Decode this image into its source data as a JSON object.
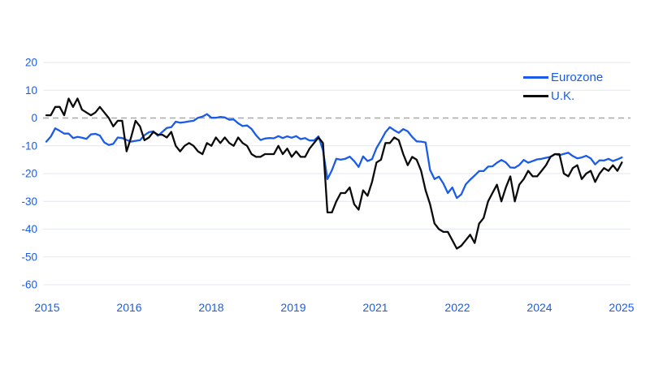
{
  "chart_data": {
    "type": "line",
    "x_unit": "monthly",
    "x_start": "2015-01",
    "x_end": "2025-10",
    "x_tick_labels": [
      "2015",
      "2016",
      "2018",
      "2019",
      "2021",
      "2022",
      "2024",
      "2025"
    ],
    "y_ticks": [
      20,
      10,
      0,
      -10,
      -20,
      -30,
      -40,
      -50,
      -60
    ],
    "ylim": [
      -60,
      20
    ],
    "grid": "horizontal-light",
    "zero_line": "dashed",
    "legend_position": "top-right",
    "series": [
      {
        "name": "Eurozone",
        "color": "#1a5ce8",
        "values": [
          -8.5,
          -6.7,
          -3.7,
          -4.6,
          -5.6,
          -5.6,
          -7.2,
          -6.8,
          -7.1,
          -7.5,
          -5.9,
          -5.7,
          -6.3,
          -8.8,
          -9.7,
          -9.3,
          -7,
          -7.2,
          -7.9,
          -8.5,
          -8.2,
          -8,
          -6.2,
          -5.1,
          -4.8,
          -6.4,
          -5,
          -3.6,
          -3.3,
          -1.3,
          -1.7,
          -1.5,
          -1.2,
          -1,
          0.1,
          0.5,
          1.4,
          0.1,
          0.1,
          0.4,
          0.2,
          -0.6,
          -0.5,
          -1.9,
          -2.9,
          -2.7,
          -3.9,
          -6.2,
          -7.9,
          -7.4,
          -7.2,
          -7.3,
          -6.5,
          -7.2,
          -6.6,
          -7.1,
          -6.5,
          -7.6,
          -7.2,
          -8.1,
          -8.1,
          -6.6,
          -11.6,
          -22,
          -18.8,
          -14.7,
          -15,
          -14.7,
          -13.9,
          -15.5,
          -17.6,
          -13.8,
          -15.5,
          -14.8,
          -10.8,
          -8.1,
          -5.1,
          -3.3,
          -4.4,
          -5.3,
          -4,
          -4.8,
          -6.8,
          -8.4,
          -8.5,
          -8.8,
          -18.7,
          -22,
          -21.1,
          -23.6,
          -27,
          -25,
          -28.8,
          -27.5,
          -23.9,
          -22.2,
          -20.7,
          -19.1,
          -19.1,
          -17.5,
          -17.4,
          -16.1,
          -15.1,
          -16,
          -17.8,
          -17.9,
          -16.9,
          -15.1,
          -16.1,
          -15.5,
          -14.9,
          -14.7,
          -14.3,
          -14,
          -13,
          -13.4,
          -12.9,
          -12.5,
          -13.7,
          -14.5,
          -14.2,
          -13.6,
          -14.5,
          -16.7,
          -15.2,
          -15.3,
          -14.7,
          -15.5,
          -14.9,
          -14.2
        ]
      },
      {
        "name": "U.K.",
        "color": "#0b0b0b",
        "values": [
          1,
          1,
          4,
          4,
          1,
          7,
          4,
          7,
          3,
          2,
          1,
          2,
          4,
          2,
          0,
          -3,
          -1,
          -1,
          -12,
          -7,
          -1,
          -3,
          -8,
          -7,
          -5,
          -6,
          -6,
          -7,
          -5,
          -10,
          -12,
          -10,
          -9,
          -10,
          -12,
          -13,
          -9,
          -10,
          -7,
          -9,
          -7,
          -9,
          -10,
          -7,
          -9,
          -10,
          -13,
          -14,
          -14,
          -13,
          -13,
          -13,
          -10,
          -13,
          -11,
          -14,
          -12,
          -14,
          -14,
          -11,
          -9,
          -7,
          -9,
          -34,
          -34,
          -30,
          -27,
          -27,
          -25,
          -31,
          -33,
          -26,
          -28,
          -23,
          -16,
          -15,
          -9,
          -9,
          -7,
          -8,
          -13,
          -17,
          -14,
          -15,
          -19,
          -26,
          -31,
          -38,
          -40,
          -41,
          -41,
          -44,
          -47,
          -46,
          -44,
          -42,
          -45,
          -38,
          -36,
          -30,
          -27,
          -24,
          -30,
          -25,
          -21,
          -30,
          -24,
          -22,
          -19,
          -21,
          -21,
          -19,
          -17,
          -14,
          -13,
          -13,
          -20,
          -21,
          -18,
          -17,
          -22,
          -20,
          -19,
          -23,
          -20,
          -18,
          -19,
          -17,
          -19,
          -16
        ]
      }
    ]
  },
  "colors": {
    "axis_text": "#1a5ce8",
    "gridline": "#e3e7f2",
    "zero_line": "#a8a8a8",
    "background": "#ffffff"
  },
  "legend": {
    "items": [
      {
        "label": "Eurozone",
        "color": "#1a5ce8"
      },
      {
        "label": "U.K.",
        "color": "#0b0b0b"
      }
    ]
  }
}
